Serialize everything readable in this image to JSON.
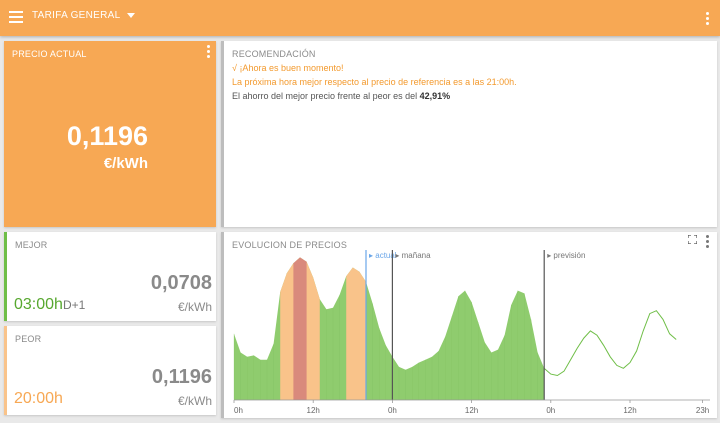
{
  "topbar": {
    "tariff_label": "TARIFA  GENERAL"
  },
  "current_price": {
    "title": "PRECIO ACTUAL",
    "value": "0,1196",
    "unit": "€/kWh"
  },
  "recommendation": {
    "title": "RECOMENDACIÓN",
    "line1": "√  ¡Ahora es buen momento!",
    "line2": "La próxima hora mejor respecto al precio de referencia es a las 21:00h.",
    "line3_prefix": "El ahorro del mejor precio frente al peor es del ",
    "line3_value": "42,91%"
  },
  "best": {
    "title": "MEJOR",
    "value": "0,0708",
    "unit": "€/kWh",
    "hour": "03:00h",
    "suffix": "D+1"
  },
  "worst": {
    "title": "PEOR",
    "value": "0,1196",
    "unit": "€/kWh",
    "hour": "20:00h"
  },
  "chart": {
    "title": "EVOLUCION DE PRECIOS",
    "markers": {
      "now": "actual",
      "tomorrow": "mañana",
      "forecast": "previsión"
    },
    "x_ticks": [
      "0h",
      "12h",
      "0h",
      "12h",
      "0h",
      "12h",
      "23h"
    ],
    "colors": {
      "area": "#8fcc6e",
      "forecast": "#6fbe47",
      "cheap_band": "#f9c38a",
      "peak_band": "#d98a7c",
      "now_line": "#6aa6e8",
      "divider": "#555555"
    }
  },
  "chart_data": {
    "type": "area",
    "hours_per_point": 1,
    "series": [
      {
        "values": [
          0.46,
          0.33,
          0.3,
          0.31,
          0.28,
          0.28,
          0.39,
          0.75,
          0.88,
          0.95,
          0.99,
          0.96,
          0.85,
          0.7,
          0.63,
          0.64,
          0.73,
          0.86,
          0.92,
          0.89,
          0.82,
          0.67,
          0.5,
          0.38,
          0.3,
          0.23,
          0.21,
          0.23,
          0.26,
          0.28,
          0.3,
          0.34,
          0.44,
          0.58,
          0.72,
          0.76,
          0.68,
          0.54,
          0.4,
          0.33,
          0.35,
          0.45,
          0.66,
          0.76,
          0.74,
          0.56,
          0.33,
          0.22
        ]
      },
      {
        "values": [
          0.18,
          0.17,
          0.2,
          0.28,
          0.36,
          0.43,
          0.48,
          0.45,
          0.38,
          0.3,
          0.24,
          0.22,
          0.26,
          0.34,
          0.48,
          0.6,
          0.62,
          0.56,
          0.46,
          0.42
        ]
      }
    ],
    "highlights": [
      {
        "type": "cheap",
        "start": 7,
        "end": 13
      },
      {
        "type": "peak",
        "start": 9,
        "end": 11
      },
      {
        "type": "cheap",
        "start": 17,
        "end": 20
      }
    ],
    "now_index": 20,
    "tomorrow_index": 24,
    "forecast_index": 47
  }
}
